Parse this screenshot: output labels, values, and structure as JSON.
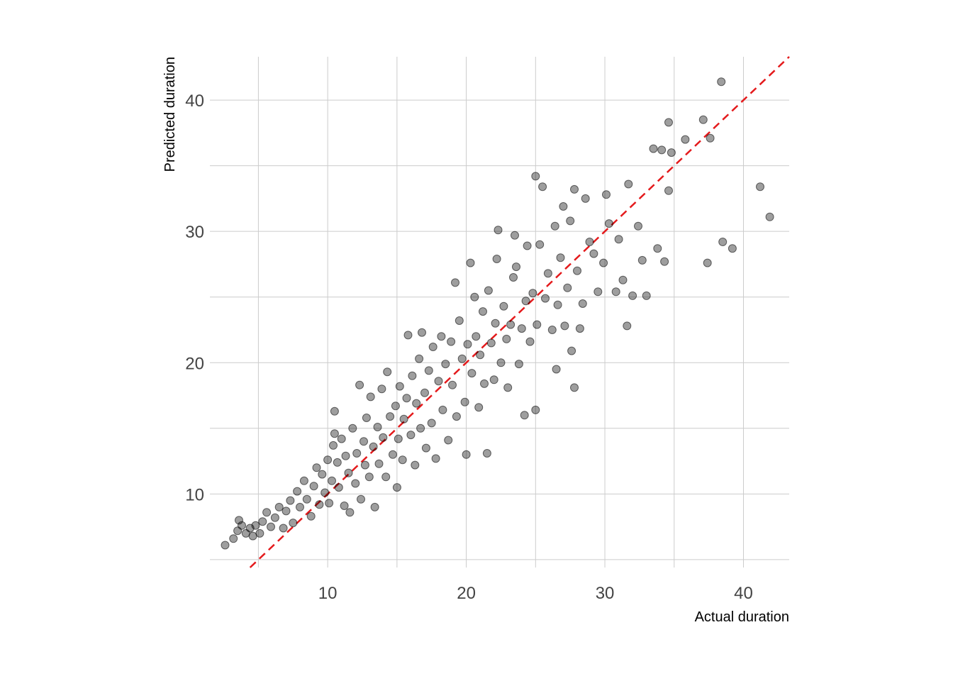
{
  "chart_data": {
    "type": "scatter",
    "xlabel": "Actual duration",
    "ylabel": "Predicted duration",
    "xlim": [
      1.5,
      43.3
    ],
    "ylim": [
      4.4,
      43.3
    ],
    "x_major_ticks": [
      10,
      20,
      30,
      40
    ],
    "x_minor_ticks": [
      5,
      15,
      25,
      35
    ],
    "y_major_ticks": [
      10,
      20,
      30,
      40
    ],
    "y_minor_ticks": [
      5,
      15,
      25,
      35
    ],
    "grid": true,
    "point_color": "#000000",
    "reference_line": {
      "type": "identity",
      "color": "#e41a1c",
      "style": "dashed"
    },
    "points": [
      [
        2.6,
        6.1
      ],
      [
        3.2,
        6.6
      ],
      [
        3.5,
        7.2
      ],
      [
        3.8,
        7.6
      ],
      [
        3.6,
        8.0
      ],
      [
        4.1,
        7.0
      ],
      [
        4.4,
        7.4
      ],
      [
        4.6,
        6.8
      ],
      [
        4.8,
        7.6
      ],
      [
        5.1,
        7.0
      ],
      [
        5.3,
        7.9
      ],
      [
        5.6,
        8.6
      ],
      [
        5.9,
        7.5
      ],
      [
        6.2,
        8.2
      ],
      [
        6.5,
        9.0
      ],
      [
        6.8,
        7.4
      ],
      [
        7.0,
        8.7
      ],
      [
        7.3,
        9.5
      ],
      [
        7.5,
        7.8
      ],
      [
        7.8,
        10.2
      ],
      [
        8.0,
        9.0
      ],
      [
        8.3,
        11.0
      ],
      [
        8.5,
        9.6
      ],
      [
        8.8,
        8.3
      ],
      [
        9.0,
        10.6
      ],
      [
        9.2,
        12.0
      ],
      [
        9.4,
        9.2
      ],
      [
        9.6,
        11.5
      ],
      [
        9.8,
        10.1
      ],
      [
        10.0,
        12.6
      ],
      [
        10.1,
        9.3
      ],
      [
        10.3,
        11.0
      ],
      [
        10.4,
        13.7
      ],
      [
        10.5,
        14.6
      ],
      [
        10.5,
        16.3
      ],
      [
        10.7,
        12.4
      ],
      [
        10.8,
        10.5
      ],
      [
        11.0,
        14.2
      ],
      [
        11.2,
        9.1
      ],
      [
        11.3,
        12.9
      ],
      [
        11.5,
        11.6
      ],
      [
        11.6,
        8.6
      ],
      [
        11.8,
        15.0
      ],
      [
        12.0,
        10.8
      ],
      [
        12.1,
        13.1
      ],
      [
        12.3,
        18.3
      ],
      [
        12.4,
        9.6
      ],
      [
        12.6,
        14.0
      ],
      [
        12.7,
        12.2
      ],
      [
        12.8,
        15.8
      ],
      [
        13.0,
        11.3
      ],
      [
        13.1,
        17.4
      ],
      [
        13.3,
        13.6
      ],
      [
        13.4,
        9.0
      ],
      [
        13.6,
        15.1
      ],
      [
        13.7,
        12.3
      ],
      [
        13.9,
        18.0
      ],
      [
        14.0,
        14.3
      ],
      [
        14.2,
        11.3
      ],
      [
        14.3,
        19.3
      ],
      [
        14.5,
        15.9
      ],
      [
        14.7,
        13.0
      ],
      [
        14.9,
        16.7
      ],
      [
        15.0,
        10.5
      ],
      [
        15.1,
        14.2
      ],
      [
        15.2,
        18.2
      ],
      [
        15.4,
        12.6
      ],
      [
        15.5,
        15.7
      ],
      [
        15.7,
        17.3
      ],
      [
        15.8,
        22.1
      ],
      [
        16.0,
        14.5
      ],
      [
        16.1,
        19.0
      ],
      [
        16.3,
        12.2
      ],
      [
        16.4,
        16.9
      ],
      [
        16.6,
        20.3
      ],
      [
        16.7,
        15.0
      ],
      [
        16.8,
        22.3
      ],
      [
        17.0,
        17.7
      ],
      [
        17.1,
        13.5
      ],
      [
        17.3,
        19.4
      ],
      [
        17.5,
        15.4
      ],
      [
        17.6,
        21.2
      ],
      [
        17.8,
        12.7
      ],
      [
        18.0,
        18.6
      ],
      [
        18.2,
        22.0
      ],
      [
        18.3,
        16.4
      ],
      [
        18.5,
        19.9
      ],
      [
        18.7,
        14.1
      ],
      [
        18.9,
        21.6
      ],
      [
        19.0,
        18.3
      ],
      [
        19.2,
        26.1
      ],
      [
        19.3,
        15.9
      ],
      [
        19.5,
        23.2
      ],
      [
        19.7,
        20.3
      ],
      [
        19.9,
        17.0
      ],
      [
        20.0,
        13.0
      ],
      [
        20.1,
        21.4
      ],
      [
        20.3,
        27.6
      ],
      [
        20.4,
        19.2
      ],
      [
        20.6,
        25.0
      ],
      [
        20.7,
        22.0
      ],
      [
        20.9,
        16.6
      ],
      [
        21.0,
        20.6
      ],
      [
        21.2,
        23.9
      ],
      [
        21.3,
        18.4
      ],
      [
        21.5,
        13.1
      ],
      [
        21.6,
        25.5
      ],
      [
        21.8,
        21.5
      ],
      [
        22.0,
        18.7
      ],
      [
        22.1,
        23.0
      ],
      [
        22.2,
        27.9
      ],
      [
        22.3,
        30.1
      ],
      [
        22.5,
        20.0
      ],
      [
        22.7,
        24.3
      ],
      [
        22.9,
        21.8
      ],
      [
        23.0,
        18.1
      ],
      [
        23.2,
        22.9
      ],
      [
        23.4,
        26.5
      ],
      [
        23.5,
        29.7
      ],
      [
        23.6,
        27.3
      ],
      [
        23.8,
        19.9
      ],
      [
        24.0,
        22.6
      ],
      [
        24.2,
        16.0
      ],
      [
        24.3,
        24.7
      ],
      [
        24.4,
        28.9
      ],
      [
        24.6,
        21.6
      ],
      [
        24.8,
        25.3
      ],
      [
        25.0,
        34.2
      ],
      [
        25.0,
        16.4
      ],
      [
        25.1,
        22.9
      ],
      [
        25.3,
        29.0
      ],
      [
        25.5,
        33.4
      ],
      [
        25.7,
        24.9
      ],
      [
        25.9,
        26.8
      ],
      [
        26.2,
        22.5
      ],
      [
        26.4,
        30.4
      ],
      [
        26.5,
        19.5
      ],
      [
        26.6,
        24.4
      ],
      [
        26.8,
        28.0
      ],
      [
        27.0,
        31.9
      ],
      [
        27.1,
        22.8
      ],
      [
        27.3,
        25.7
      ],
      [
        27.5,
        30.8
      ],
      [
        27.6,
        20.9
      ],
      [
        27.8,
        33.2
      ],
      [
        27.8,
        18.1
      ],
      [
        28.0,
        27.0
      ],
      [
        28.2,
        22.6
      ],
      [
        28.4,
        24.5
      ],
      [
        28.6,
        32.5
      ],
      [
        28.9,
        29.2
      ],
      [
        29.2,
        28.3
      ],
      [
        29.5,
        25.4
      ],
      [
        29.9,
        27.6
      ],
      [
        30.1,
        32.8
      ],
      [
        30.3,
        30.6
      ],
      [
        30.8,
        25.4
      ],
      [
        31.0,
        29.4
      ],
      [
        31.3,
        26.3
      ],
      [
        31.6,
        22.8
      ],
      [
        31.7,
        33.6
      ],
      [
        32.0,
        25.1
      ],
      [
        32.4,
        30.4
      ],
      [
        32.7,
        27.8
      ],
      [
        33.0,
        25.1
      ],
      [
        33.5,
        36.3
      ],
      [
        33.8,
        28.7
      ],
      [
        34.1,
        36.2
      ],
      [
        34.3,
        27.7
      ],
      [
        34.6,
        38.3
      ],
      [
        34.6,
        33.1
      ],
      [
        34.8,
        36.0
      ],
      [
        35.8,
        37.0
      ],
      [
        37.1,
        38.5
      ],
      [
        37.4,
        27.6
      ],
      [
        37.6,
        37.1
      ],
      [
        38.4,
        41.4
      ],
      [
        38.5,
        29.2
      ],
      [
        39.2,
        28.7
      ],
      [
        41.2,
        33.4
      ],
      [
        41.9,
        31.1
      ]
    ]
  }
}
